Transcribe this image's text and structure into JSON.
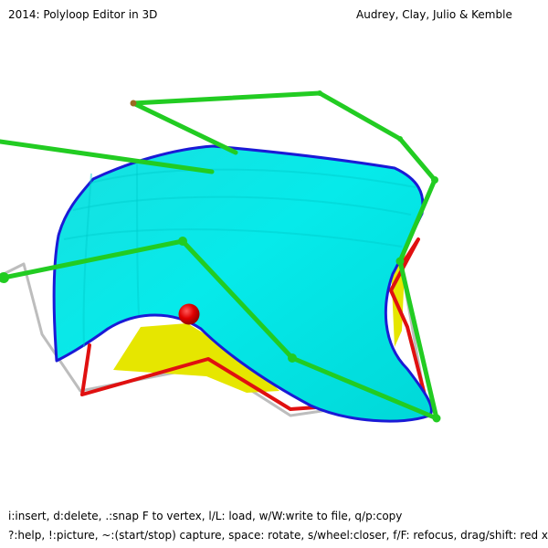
{
  "header": {
    "title": "2014: Polyloop Editor in 3D",
    "authors": "Audrey, Clay, Julio & Kemble"
  },
  "footer": {
    "help_line_1": "i:insert, d:delete, .:snap F to vertex, l/L: load, w/W:write to file, q/p:copy",
    "help_line_2": "?:help, !:picture, ~:(start/stop) capture, space: rotate, s/wheel:closer, f/F: refocus, drag/shift: red xy/z"
  },
  "colors": {
    "surface": "#00e6e6",
    "surface_edge": "#1a1ad6",
    "green_loop": "#22cc22",
    "red_loop": "#e01010",
    "grey_loop": "#b8b8b8",
    "yellow_patch": "#e6e600",
    "focus_point": "#e00000"
  },
  "icons": {
    "focus_point": "red-sphere-icon"
  }
}
